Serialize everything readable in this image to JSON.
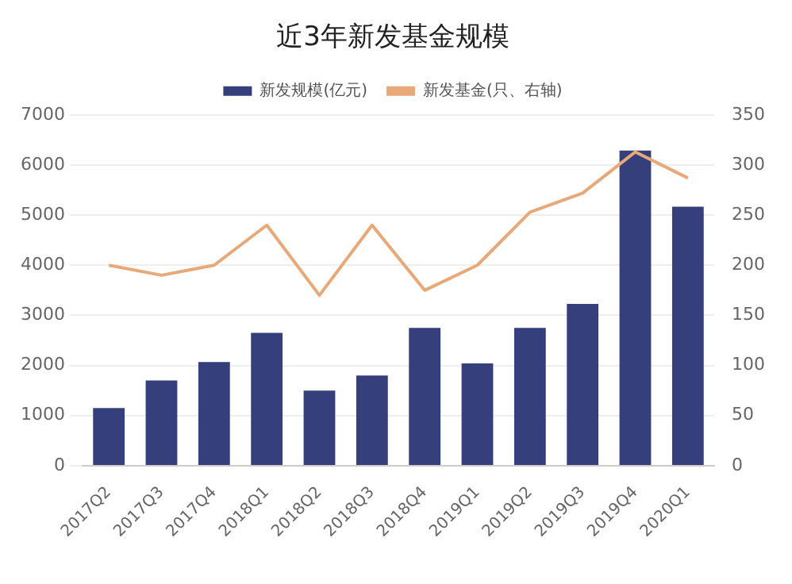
{
  "chart_data": {
    "type": "bar",
    "title": "近3年新发基金规模",
    "categories": [
      "2017Q2",
      "2017Q3",
      "2017Q4",
      "2018Q1",
      "2018Q2",
      "2018Q3",
      "2018Q4",
      "2019Q1",
      "2019Q2",
      "2019Q3",
      "2019Q4",
      "2020Q1"
    ],
    "series": [
      {
        "name": "新发规模(亿元)",
        "color": "#343f7b",
        "values": [
          1150,
          1700,
          2070,
          2650,
          1500,
          1800,
          2750,
          2040,
          2750,
          3230,
          6290,
          5170
        ]
      },
      {
        "name": "新发基金(只、右轴)",
        "type": "line",
        "axis": "y2",
        "color": "#e9a878",
        "values": [
          200,
          190,
          200,
          240,
          170,
          240,
          175,
          200,
          253,
          272,
          313,
          287
        ]
      }
    ],
    "ylim": [
      0,
      7000
    ],
    "yticks": [
      0,
      1000,
      2000,
      3000,
      4000,
      5000,
      6000,
      7000
    ],
    "y2lim": [
      0,
      350
    ],
    "y2ticks": [
      0,
      50,
      100,
      150,
      200,
      250,
      300,
      350
    ],
    "grid": "y",
    "legend": "top",
    "marker": "none"
  }
}
